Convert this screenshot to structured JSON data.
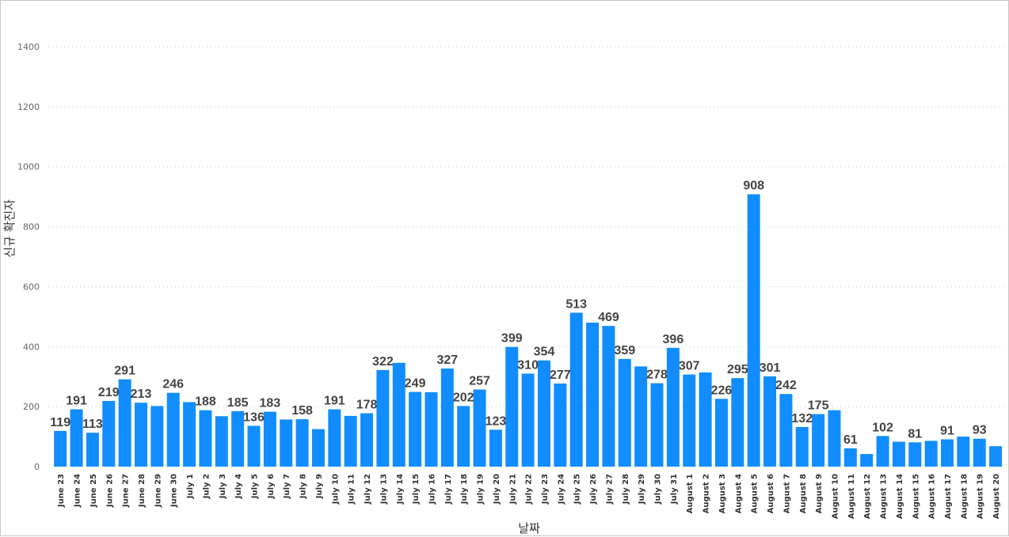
{
  "chart_data": {
    "type": "bar",
    "xlabel": "날짜",
    "ylabel": "신규 확진자",
    "ylim": [
      0,
      1400
    ],
    "yticks": [
      0,
      200,
      400,
      600,
      800,
      1000,
      1200,
      1400
    ],
    "grid": true,
    "bar_color": "#118dff",
    "categories": [
      "June 23",
      "June 24",
      "June 25",
      "June 26",
      "June 27",
      "June 28",
      "June 29",
      "June 30",
      "July 1",
      "July 2",
      "July 3",
      "July 4",
      "July 5",
      "July 6",
      "July 7",
      "July 8",
      "July 9",
      "July 10",
      "July 11",
      "July 12",
      "July 13",
      "July 14",
      "July 15",
      "July 16",
      "July 17",
      "July 18",
      "July 19",
      "July 20",
      "July 21",
      "July 22",
      "July 23",
      "July 24",
      "July 25",
      "July 26",
      "July 27",
      "July 28",
      "July 29",
      "July 30",
      "July 31",
      "August 1",
      "August 2",
      "August 3",
      "August 4",
      "August 5",
      "August 6",
      "August 7",
      "August 8",
      "August 9",
      "August 10",
      "August 11",
      "August 12",
      "August 13",
      "August 14",
      "August 15",
      "August 16",
      "August 17",
      "August 18",
      "August 19",
      "August 20"
    ],
    "values": [
      119,
      191,
      113,
      219,
      291,
      213,
      202,
      246,
      215,
      188,
      168,
      185,
      136,
      183,
      157,
      158,
      125,
      191,
      169,
      178,
      322,
      346,
      249,
      248,
      327,
      202,
      257,
      123,
      399,
      310,
      354,
      277,
      513,
      480,
      469,
      359,
      334,
      278,
      396,
      307,
      314,
      226,
      295,
      908,
      301,
      242,
      132,
      175,
      188,
      61,
      42,
      102,
      83,
      81,
      86,
      91,
      100,
      93,
      68
    ],
    "data_labels": [
      {
        "index": 0,
        "text": "119"
      },
      {
        "index": 1,
        "text": "191"
      },
      {
        "index": 2,
        "text": "113"
      },
      {
        "index": 3,
        "text": "219"
      },
      {
        "index": 4,
        "text": "291"
      },
      {
        "index": 5,
        "text": "213"
      },
      {
        "index": 7,
        "text": "246"
      },
      {
        "index": 9,
        "text": "188"
      },
      {
        "index": 11,
        "text": "185"
      },
      {
        "index": 12,
        "text": "136"
      },
      {
        "index": 13,
        "text": "183"
      },
      {
        "index": 15,
        "text": "158"
      },
      {
        "index": 17,
        "text": "191"
      },
      {
        "index": 19,
        "text": "178"
      },
      {
        "index": 20,
        "text": "322"
      },
      {
        "index": 22,
        "text": "249"
      },
      {
        "index": 24,
        "text": "327"
      },
      {
        "index": 25,
        "text": "202"
      },
      {
        "index": 26,
        "text": "257"
      },
      {
        "index": 27,
        "text": "123"
      },
      {
        "index": 28,
        "text": "399"
      },
      {
        "index": 29,
        "text": "310"
      },
      {
        "index": 30,
        "text": "354"
      },
      {
        "index": 31,
        "text": "277"
      },
      {
        "index": 32,
        "text": "513"
      },
      {
        "index": 34,
        "text": "469"
      },
      {
        "index": 35,
        "text": "359"
      },
      {
        "index": 37,
        "text": "278"
      },
      {
        "index": 38,
        "text": "396"
      },
      {
        "index": 39,
        "text": "307"
      },
      {
        "index": 41,
        "text": "226"
      },
      {
        "index": 42,
        "text": "295"
      },
      {
        "index": 43,
        "text": "908"
      },
      {
        "index": 44,
        "text": "301"
      },
      {
        "index": 45,
        "text": "242"
      },
      {
        "index": 46,
        "text": "132"
      },
      {
        "index": 47,
        "text": "175"
      },
      {
        "index": 49,
        "text": "61"
      },
      {
        "index": 51,
        "text": "102"
      },
      {
        "index": 53,
        "text": "81"
      },
      {
        "index": 55,
        "text": "91"
      },
      {
        "index": 57,
        "text": "93"
      }
    ]
  }
}
